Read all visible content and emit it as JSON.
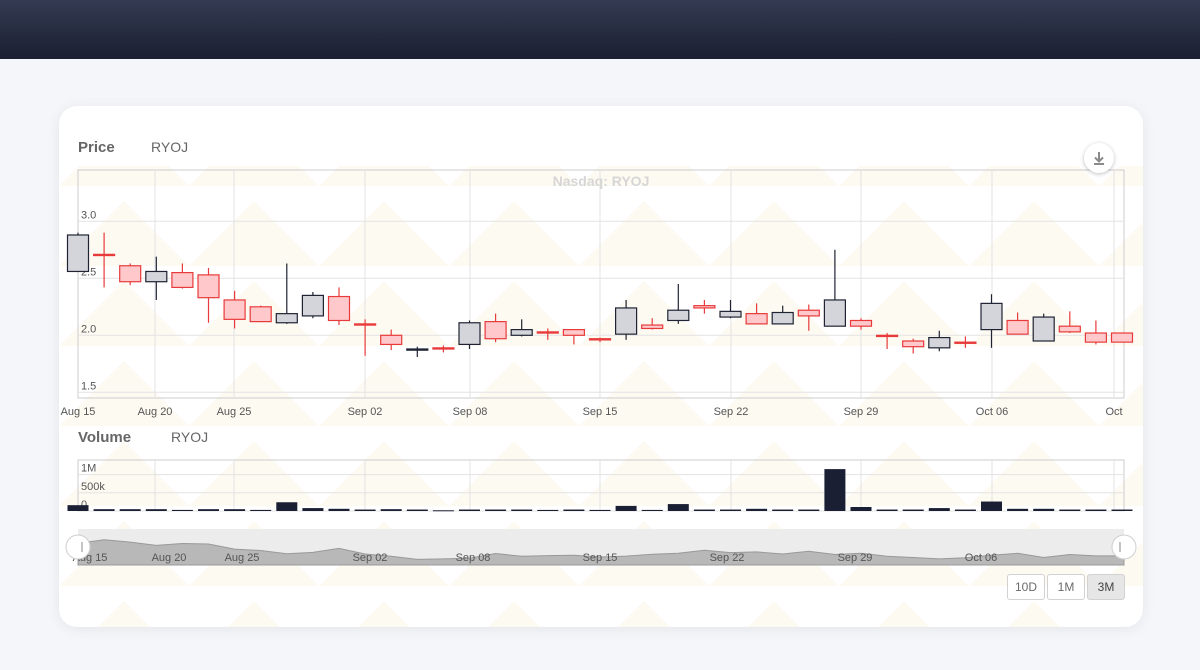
{
  "header": {
    "price_title": "Price",
    "price_symbol": "RYOJ",
    "volume_title": "Volume",
    "volume_symbol": "RYOJ"
  },
  "watermark": "Nasdaq: RYOJ",
  "icons": {
    "download": "download-icon",
    "navigator_left": "navigator-left-handle-icon",
    "navigator_right": "navigator-right-handle-icon"
  },
  "range_selector": {
    "buttons": [
      "10D",
      "1M",
      "3M"
    ],
    "selected": "3M"
  },
  "colors": {
    "up_fill": "#ffc9cc",
    "up_stroke": "#e83a3a",
    "down_fill": "#d3d5da",
    "down_stroke": "#1f2333",
    "volume": "#1a1f33",
    "navigator_area": "#b8b8b8"
  },
  "chart_data": [
    {
      "type": "candlestick",
      "title": "Nasdaq: RYOJ",
      "series_name": "RYOJ",
      "x_tick_labels": [
        "Aug 15",
        "Aug 20",
        "Aug 25",
        "Sep 02",
        "Sep 08",
        "Sep 15",
        "Sep 22",
        "Sep 29",
        "Oct 06",
        "Oct"
      ],
      "y_tick_labels": [
        "1.5",
        "2.0",
        "2.5",
        "3.0"
      ],
      "ylim": [
        1.45,
        3.45
      ],
      "grid": true,
      "candles": [
        {
          "date": "Aug 15",
          "open": 2.88,
          "high": 2.9,
          "low": 2.56,
          "close": 2.56
        },
        {
          "date": "Aug 18",
          "open": 2.7,
          "high": 2.9,
          "low": 2.42,
          "close": 2.71
        },
        {
          "date": "Aug 19",
          "open": 2.47,
          "high": 2.63,
          "low": 2.44,
          "close": 2.61
        },
        {
          "date": "Aug 20",
          "open": 2.56,
          "high": 2.69,
          "low": 2.31,
          "close": 2.47
        },
        {
          "date": "Aug 21",
          "open": 2.42,
          "high": 2.63,
          "low": 2.41,
          "close": 2.55
        },
        {
          "date": "Aug 22",
          "open": 2.33,
          "high": 2.59,
          "low": 2.11,
          "close": 2.53
        },
        {
          "date": "Aug 25",
          "open": 2.14,
          "high": 2.39,
          "low": 2.06,
          "close": 2.31
        },
        {
          "date": "Aug 26",
          "open": 2.12,
          "high": 2.26,
          "low": 2.12,
          "close": 2.25
        },
        {
          "date": "Aug 27",
          "open": 2.19,
          "high": 2.63,
          "low": 2.1,
          "close": 2.11
        },
        {
          "date": "Aug 28",
          "open": 2.35,
          "high": 2.38,
          "low": 2.15,
          "close": 2.17
        },
        {
          "date": "Aug 29",
          "open": 2.13,
          "high": 2.42,
          "low": 2.09,
          "close": 2.34
        },
        {
          "date": "Sep 02",
          "open": 2.09,
          "high": 2.14,
          "low": 1.82,
          "close": 2.1
        },
        {
          "date": "Sep 03",
          "open": 1.92,
          "high": 2.05,
          "low": 1.87,
          "close": 2.0
        },
        {
          "date": "Sep 04",
          "open": 1.88,
          "high": 1.9,
          "low": 1.81,
          "close": 1.87
        },
        {
          "date": "Sep 05",
          "open": 1.89,
          "high": 1.91,
          "low": 1.85,
          "close": 1.89
        },
        {
          "date": "Sep 08",
          "open": 2.11,
          "high": 2.13,
          "low": 1.88,
          "close": 1.92
        },
        {
          "date": "Sep 09",
          "open": 1.97,
          "high": 2.19,
          "low": 1.94,
          "close": 2.12
        },
        {
          "date": "Sep 10",
          "open": 2.05,
          "high": 2.14,
          "low": 1.99,
          "close": 2.0
        },
        {
          "date": "Sep 11",
          "open": 2.02,
          "high": 2.06,
          "low": 1.96,
          "close": 2.03
        },
        {
          "date": "Sep 12",
          "open": 2.0,
          "high": 2.05,
          "low": 1.92,
          "close": 2.05
        },
        {
          "date": "Sep 15",
          "open": 1.96,
          "high": 1.98,
          "low": 1.94,
          "close": 1.97
        },
        {
          "date": "Sep 16",
          "open": 2.24,
          "high": 2.31,
          "low": 1.96,
          "close": 2.01
        },
        {
          "date": "Sep 17",
          "open": 2.06,
          "high": 2.15,
          "low": 2.05,
          "close": 2.09
        },
        {
          "date": "Sep 18",
          "open": 2.22,
          "high": 2.45,
          "low": 2.1,
          "close": 2.13
        },
        {
          "date": "Sep 19",
          "open": 2.24,
          "high": 2.31,
          "low": 2.19,
          "close": 2.26
        },
        {
          "date": "Sep 22",
          "open": 2.21,
          "high": 2.31,
          "low": 2.15,
          "close": 2.16
        },
        {
          "date": "Sep 23",
          "open": 2.1,
          "high": 2.28,
          "low": 2.1,
          "close": 2.19
        },
        {
          "date": "Sep 24",
          "open": 2.2,
          "high": 2.26,
          "low": 2.1,
          "close": 2.1
        },
        {
          "date": "Sep 25",
          "open": 2.17,
          "high": 2.27,
          "low": 2.04,
          "close": 2.22
        },
        {
          "date": "Sep 26",
          "open": 2.31,
          "high": 2.75,
          "low": 2.08,
          "close": 2.08
        },
        {
          "date": "Sep 29",
          "open": 2.08,
          "high": 2.15,
          "low": 2.05,
          "close": 2.13
        },
        {
          "date": "Sep 30",
          "open": 2.0,
          "high": 2.02,
          "low": 1.88,
          "close": 2.0
        },
        {
          "date": "Oct 01",
          "open": 1.9,
          "high": 1.97,
          "low": 1.84,
          "close": 1.95
        },
        {
          "date": "Oct 02",
          "open": 1.98,
          "high": 2.04,
          "low": 1.86,
          "close": 1.89
        },
        {
          "date": "Oct 03",
          "open": 1.94,
          "high": 1.99,
          "low": 1.89,
          "close": 1.94
        },
        {
          "date": "Oct 06",
          "open": 2.28,
          "high": 2.36,
          "low": 1.89,
          "close": 2.05
        },
        {
          "date": "Oct 07",
          "open": 2.01,
          "high": 2.2,
          "low": 2.01,
          "close": 2.13
        },
        {
          "date": "Oct 08",
          "open": 2.16,
          "high": 2.19,
          "low": 1.95,
          "close": 1.95
        },
        {
          "date": "Oct 09",
          "open": 2.03,
          "high": 2.21,
          "low": 2.02,
          "close": 2.08
        },
        {
          "date": "Oct 10",
          "open": 1.94,
          "high": 2.13,
          "low": 1.92,
          "close": 2.02
        },
        {
          "date": "Oct 13",
          "open": 1.94,
          "high": 2.02,
          "low": 1.94,
          "close": 2.02
        }
      ]
    },
    {
      "type": "bar",
      "series_name": "RYOJ",
      "y_tick_labels": [
        "0",
        "500k",
        "1M"
      ],
      "ylim": [
        0,
        1400000
      ],
      "values": [
        160000,
        50000,
        50000,
        50000,
        30000,
        50000,
        50000,
        30000,
        240000,
        80000,
        60000,
        40000,
        50000,
        40000,
        20000,
        40000,
        40000,
        40000,
        30000,
        40000,
        30000,
        140000,
        30000,
        190000,
        40000,
        40000,
        60000,
        40000,
        40000,
        1150000,
        110000,
        40000,
        40000,
        80000,
        40000,
        260000,
        60000,
        60000,
        40000,
        40000,
        40000
      ]
    },
    {
      "type": "area",
      "role": "navigator",
      "x_tick_labels": [
        "Aug 15",
        "Aug 20",
        "Aug 25",
        "Sep 02",
        "Sep 08",
        "Sep 15",
        "Sep 22",
        "Sep 29",
        "Oct 06"
      ]
    }
  ]
}
